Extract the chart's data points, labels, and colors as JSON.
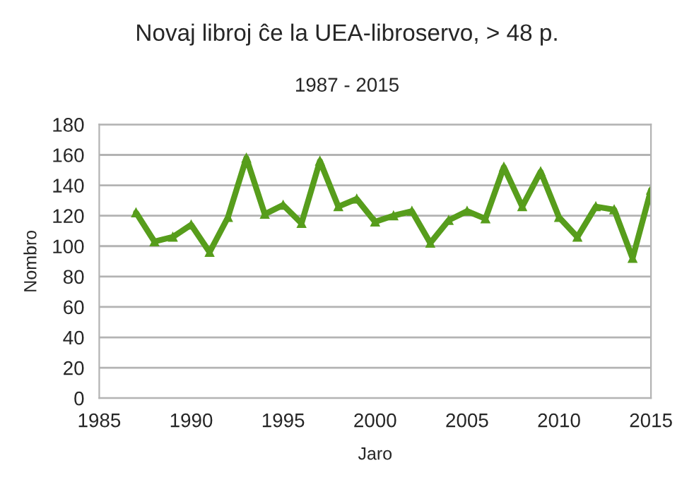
{
  "chart_data": {
    "type": "line",
    "title": "Novaj libroj ĉe la UEA-libroservo, > 48 p.",
    "subtitle": "1987 - 2015",
    "xlabel": "Jaro",
    "ylabel": "Nombro",
    "x": [
      1987,
      1988,
      1989,
      1990,
      1991,
      1992,
      1993,
      1994,
      1995,
      1996,
      1997,
      1998,
      1999,
      2000,
      2001,
      2002,
      2003,
      2004,
      2005,
      2006,
      2007,
      2008,
      2009,
      2010,
      2011,
      2012,
      2013,
      2014,
      2015
    ],
    "series": [
      {
        "color": "#579d1c",
        "values": [
          122,
          103,
          106,
          114,
          96,
          119,
          158,
          121,
          127,
          115,
          156,
          126,
          131,
          116,
          120,
          123,
          102,
          117,
          123,
          118,
          152,
          126,
          149,
          119,
          106,
          126,
          124,
          92,
          137
        ]
      }
    ],
    "xlim": [
      1985,
      2015
    ],
    "xticks": [
      1985,
      1990,
      1995,
      2000,
      2005,
      2010,
      2015
    ],
    "ylim": [
      0,
      180
    ],
    "yticks": [
      0,
      20,
      40,
      60,
      80,
      100,
      120,
      140,
      160,
      180
    ],
    "grid": "y",
    "marker": "triangle",
    "line_style": "solid"
  }
}
